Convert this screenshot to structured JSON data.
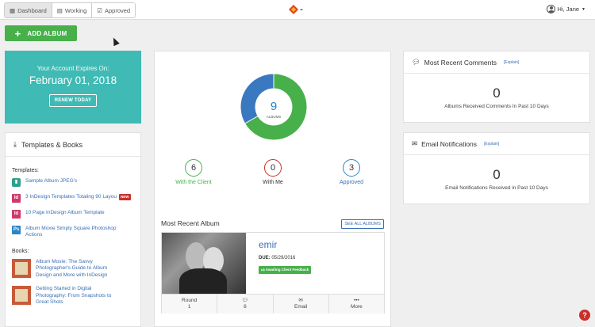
{
  "topbar": {
    "tabs": [
      {
        "label": "Dashboard",
        "icon": "dashboard-icon"
      },
      {
        "label": "Working",
        "icon": "book-icon"
      },
      {
        "label": "Approved",
        "icon": "checkbox-icon"
      }
    ],
    "user_greeting": "Hi, Jane"
  },
  "actions": {
    "add_album": "ADD ALBUM"
  },
  "account": {
    "expires_label": "Your Account Expires On:",
    "expires_date": "February 01, 2018",
    "renew": "RENEW TODAY"
  },
  "templates": {
    "title": "Templates & Books",
    "templates_label": "Templates:",
    "items": [
      {
        "label": "Sample Album JPEG's",
        "icon": "book-icon"
      },
      {
        "label": "3 InDesign Templates Totaling 90 Layou",
        "icon": "indesign-icon",
        "badge": "NEW"
      },
      {
        "label": "10 Page InDesign Album Template",
        "icon": "indesign-icon"
      },
      {
        "label": "Album Moxie Simply Square Photoshop Actions",
        "icon": "photoshop-icon"
      }
    ],
    "books_label": "Books:",
    "books": [
      {
        "label": "Album Moxie: The Savvy Photographer's Guide to Album Design and More with InDesign"
      },
      {
        "label": "Getting Started in Digital Photography: From Snapshots to Great Shots"
      }
    ]
  },
  "summary": {
    "total": "9",
    "total_label": "ALBUMS",
    "stats": [
      {
        "value": "6",
        "label": "With the Client",
        "color": "#47b04b"
      },
      {
        "value": "0",
        "label": "With Me",
        "color": "#c9302c"
      },
      {
        "value": "3",
        "label": "Approved",
        "color": "#2a85c8"
      }
    ]
  },
  "chart_data": {
    "type": "pie",
    "categories": [
      "With the Client",
      "With Me",
      "Approved"
    ],
    "values": [
      6,
      0,
      3
    ],
    "colors": [
      "#47b04b",
      "#c9302c",
      "#3a78c0"
    ]
  },
  "recent_album": {
    "title": "Most Recent Album",
    "see_all": "SEE ALL ALBUMS",
    "name": "emir",
    "due_label": "DUE:",
    "due_date": "05/29/2016",
    "status": "Awaiting Client Feedback",
    "round_label": "Round",
    "round_value": "1",
    "comments_count": "6",
    "email_label": "Email",
    "more_label": "More"
  },
  "comments": {
    "title": "Most Recent Comments",
    "explain": "[Explain]",
    "count": "0",
    "subtitle": "Albums Received Comments In Past 10 Days"
  },
  "notifications": {
    "title": "Email Notifications",
    "explain": "[Explain]",
    "count": "0",
    "subtitle": "Email Notifications Received in Past 10 Days"
  },
  "help": {
    "label": "?"
  }
}
